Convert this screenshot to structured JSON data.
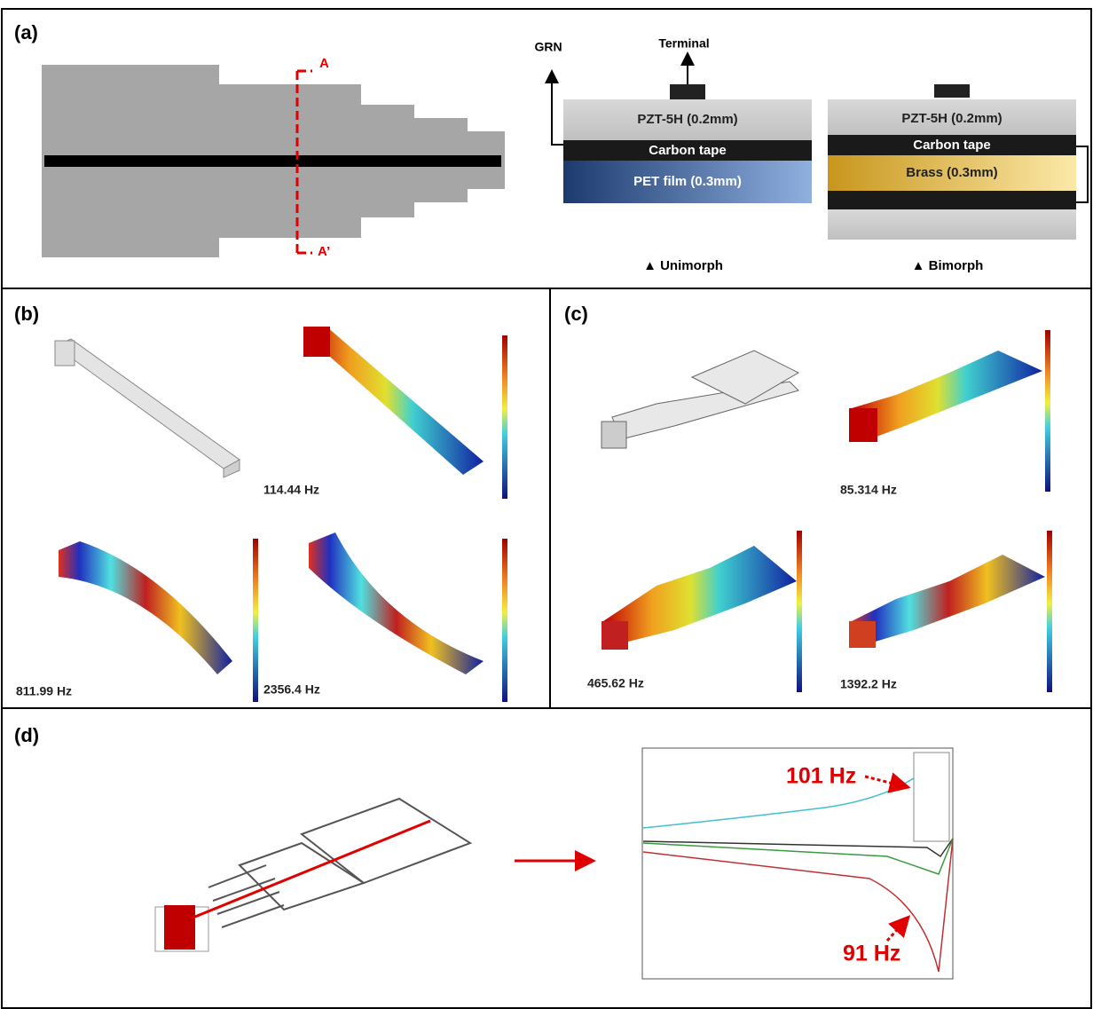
{
  "panels": {
    "a": {
      "label": "(a)",
      "section_start": "A",
      "section_end": "A’",
      "grn": "GRN",
      "terminal": "Terminal",
      "unimorph": {
        "pzt": "PZT-5H (0.2mm)",
        "carbon": "Carbon tape",
        "pet": "PET film (0.3mm)",
        "caption": "▲ Unimorph"
      },
      "bimorph": {
        "pzt": "PZT-5H (0.2mm)",
        "carbon": "Carbon tape",
        "brass": "Brass (0.3mm)",
        "caption": "▲ Bimorph"
      }
    },
    "b": {
      "label": "(b)",
      "frequencies": [
        "114.44 Hz",
        "811.99 Hz",
        "2356.4 Hz"
      ]
    },
    "c": {
      "label": "(c)",
      "frequencies": [
        "85.314 Hz",
        "465.62 Hz",
        "1392.2 Hz"
      ]
    },
    "d": {
      "label": "(d)",
      "annotations": [
        "101 Hz",
        "91 Hz"
      ]
    }
  }
}
